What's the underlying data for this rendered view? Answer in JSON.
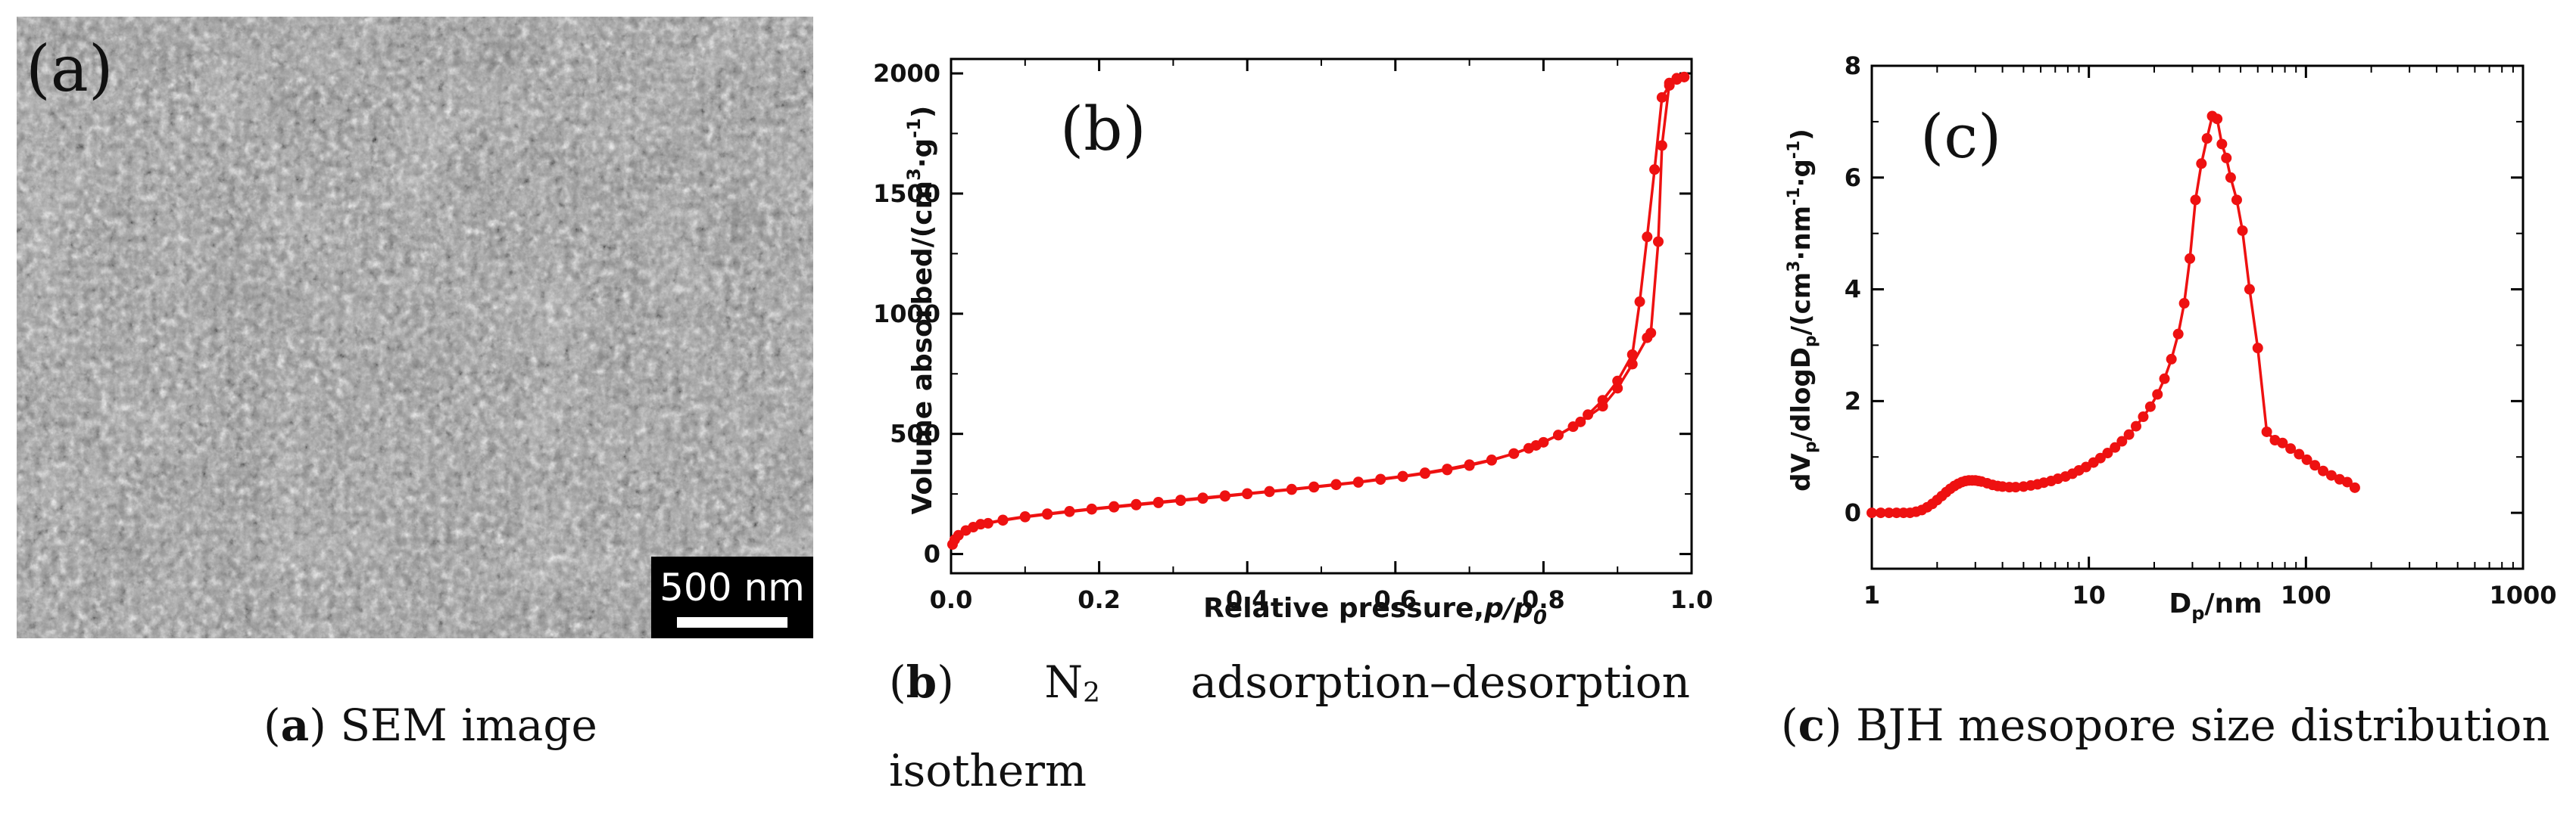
{
  "panel_a": {
    "letter": "(a)",
    "scale_bar_label": "500 nm",
    "caption_letter": "a",
    "caption_text": "SEM image"
  },
  "panel_b": {
    "caption_letter": "b",
    "caption_species": "N",
    "caption_subscript": "2",
    "caption_line1_word": "adsorption–desorption",
    "caption_line2": "isotherm"
  },
  "panel_c": {
    "caption_letter": "c",
    "caption_text": "BJH mesopore size distribution"
  },
  "colors": {
    "series": "#ee1111",
    "axis": "#000000",
    "text": "#111111"
  },
  "chart_data": [
    {
      "type": "line",
      "panel_letter": "(b)",
      "title": "",
      "xlabel_prefix": "Relative pressure,",
      "xlabel_italic_p": "p",
      "xlabel_slash": "/",
      "xlabel_italic_p2": "p",
      "xlabel_sub": "0",
      "ylabel_main": "Volume absorbed/(cm",
      "ylabel_sup1": "3",
      "ylabel_mid": "·g",
      "ylabel_sup2": "-1",
      "ylabel_end": ")",
      "xlim": [
        0,
        1.0
      ],
      "ylim": [
        -80,
        2060
      ],
      "xticks": [
        0.0,
        0.2,
        0.4,
        0.6,
        0.8,
        1.0
      ],
      "xtick_labels": [
        "0.0",
        "0.2",
        "0.4",
        "0.6",
        "0.8",
        "1.0"
      ],
      "yticks": [
        0,
        500,
        1000,
        1500,
        2000
      ],
      "ytick_labels": [
        "0",
        "500",
        "1000",
        "1500",
        "2000"
      ],
      "series": [
        {
          "name": "adsorption",
          "x": [
            0.002,
            0.005,
            0.01,
            0.02,
            0.03,
            0.05,
            0.07,
            0.1,
            0.13,
            0.16,
            0.19,
            0.22,
            0.25,
            0.28,
            0.31,
            0.34,
            0.37,
            0.4,
            0.43,
            0.46,
            0.49,
            0.52,
            0.55,
            0.58,
            0.61,
            0.64,
            0.67,
            0.7,
            0.73,
            0.76,
            0.79,
            0.82,
            0.85,
            0.88,
            0.9,
            0.92,
            0.94,
            0.945,
            0.955,
            0.96,
            0.97,
            0.98,
            0.99
          ],
          "y": [
            40,
            60,
            78,
            98,
            112,
            128,
            140,
            154,
            165,
            176,
            186,
            195,
            204,
            213,
            222,
            231,
            240,
            250,
            259,
            268,
            278,
            288,
            298,
            310,
            322,
            335,
            350,
            368,
            390,
            418,
            452,
            495,
            550,
            615,
            690,
            790,
            900,
            920,
            1300,
            1700,
            1960,
            1980,
            1985
          ]
        },
        {
          "name": "desorption",
          "x": [
            0.99,
            0.98,
            0.97,
            0.96,
            0.95,
            0.94,
            0.93,
            0.92,
            0.9,
            0.88,
            0.86,
            0.84,
            0.82,
            0.8,
            0.78,
            0.76,
            0.73,
            0.7,
            0.67,
            0.64,
            0.61,
            0.58,
            0.55,
            0.52,
            0.49,
            0.46,
            0.43,
            0.4,
            0.37,
            0.34,
            0.31,
            0.28,
            0.25,
            0.22,
            0.19,
            0.16,
            0.13,
            0.1,
            0.07,
            0.04
          ],
          "y": [
            1985,
            1975,
            1950,
            1900,
            1600,
            1320,
            1050,
            830,
            720,
            640,
            580,
            530,
            495,
            465,
            440,
            418,
            392,
            372,
            354,
            338,
            324,
            312,
            300,
            290,
            280,
            270,
            261,
            252,
            243,
            234,
            225,
            216,
            207,
            198,
            188,
            178,
            168,
            156,
            142,
            124
          ]
        }
      ]
    },
    {
      "type": "line",
      "panel_letter": "(c)",
      "title": "",
      "xlabel_main": "D",
      "xlabel_sub": "p",
      "xlabel_end": "/nm",
      "ylabel_a": "dV",
      "ylabel_sub1": "p",
      "ylabel_b": "/dlogD",
      "ylabel_sub2": "p",
      "ylabel_c": "/(cm",
      "ylabel_sup1": "3",
      "ylabel_d": "·nm",
      "ylabel_sup2": "-1",
      "ylabel_e": "·g",
      "ylabel_sup3": "-1",
      "ylabel_f": ")",
      "xscale": "log",
      "xlim": [
        1,
        1000
      ],
      "ylim": [
        -1,
        8
      ],
      "xticks": [
        1,
        10,
        100,
        1000
      ],
      "xtick_labels": [
        "1",
        "10",
        "100",
        "1000"
      ],
      "yticks": [
        0,
        2,
        4,
        6,
        8
      ],
      "ytick_labels": [
        "0",
        "2",
        "4",
        "6",
        "8"
      ],
      "series": [
        {
          "name": "BJH",
          "x": [
            1.0,
            1.1,
            1.2,
            1.3,
            1.4,
            1.5,
            1.6,
            1.7,
            1.8,
            1.9,
            2.0,
            2.1,
            2.2,
            2.3,
            2.4,
            2.5,
            2.6,
            2.7,
            2.8,
            2.9,
            3.0,
            3.1,
            3.2,
            3.4,
            3.6,
            3.8,
            4.0,
            4.3,
            4.6,
            5.0,
            5.4,
            5.8,
            6.2,
            6.7,
            7.2,
            7.8,
            8.4,
            9.0,
            9.7,
            10.5,
            11.3,
            12.2,
            13.2,
            14.2,
            15.3,
            16.5,
            17.8,
            19.2,
            20.7,
            22.3,
            24.0,
            25.8,
            27.5,
            29.2,
            31.0,
            33.0,
            35.0,
            37.0,
            39.0,
            41.0,
            43.0,
            45.0,
            48.0,
            51.0,
            55.0,
            60.0,
            66.0,
            72.0,
            78.0,
            85.0,
            93.0,
            101.0,
            110.0,
            120.0,
            131.0,
            143.0,
            155.0,
            168.0
          ],
          "y": [
            0.0,
            0.0,
            0.0,
            0.0,
            0.0,
            0.0,
            0.02,
            0.05,
            0.1,
            0.16,
            0.23,
            0.3,
            0.37,
            0.43,
            0.48,
            0.52,
            0.55,
            0.57,
            0.58,
            0.58,
            0.58,
            0.57,
            0.56,
            0.53,
            0.5,
            0.48,
            0.47,
            0.46,
            0.46,
            0.47,
            0.49,
            0.51,
            0.54,
            0.57,
            0.61,
            0.65,
            0.7,
            0.76,
            0.82,
            0.9,
            0.98,
            1.07,
            1.17,
            1.28,
            1.4,
            1.55,
            1.72,
            1.9,
            2.12,
            2.4,
            2.75,
            3.2,
            3.75,
            4.55,
            5.6,
            6.25,
            6.7,
            7.1,
            7.05,
            6.6,
            6.35,
            6.0,
            5.6,
            5.05,
            4.0,
            2.95,
            1.45,
            1.3,
            1.25,
            1.15,
            1.05,
            0.95,
            0.85,
            0.75,
            0.67,
            0.6,
            0.55,
            0.45
          ]
        }
      ]
    }
  ]
}
